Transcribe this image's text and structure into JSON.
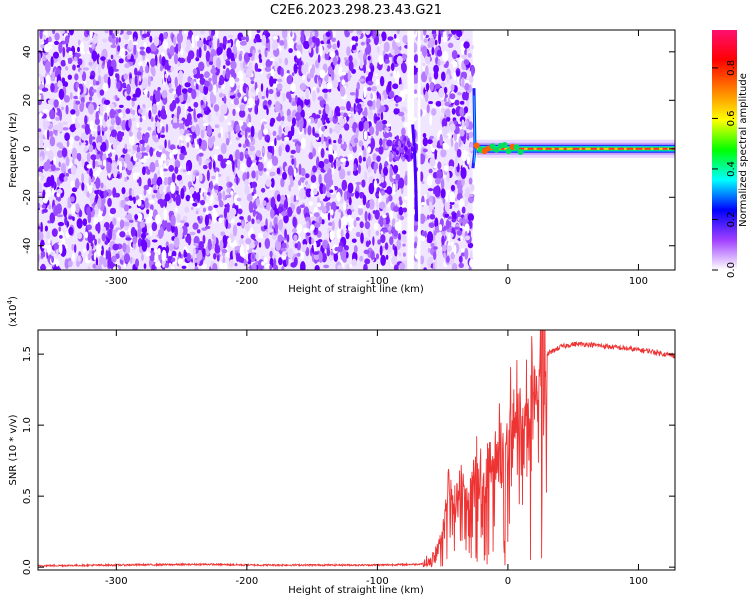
{
  "title": "C2E6.2023.298.23.43.G21",
  "colorbar": {
    "label": "Normalized spectral amplitude",
    "ticks": [
      0.0,
      0.2,
      0.4,
      0.6,
      0.8
    ],
    "tick_labels": [
      "0.0",
      "0.2",
      "0.4",
      "0.6",
      "0.8"
    ],
    "colormap": [
      "#ffffff",
      "#a040ff",
      "#0000ff",
      "#00ffff",
      "#00ff00",
      "#ffff00",
      "#ff8000",
      "#ff0000",
      "#ff1070"
    ]
  },
  "chart_data": [
    {
      "type": "heatmap",
      "xlabel": "Height of straight line (km)",
      "ylabel": "Frequency (Hz)",
      "xlim": [
        -360,
        128
      ],
      "ylim": [
        -50,
        49
      ],
      "xticks": [
        -300,
        -200,
        -100,
        0,
        100
      ],
      "xtick_labels": [
        "-300",
        "-200",
        "-100",
        "0",
        "100"
      ],
      "yticks": [
        -40,
        -20,
        0,
        20,
        40
      ],
      "ytick_labels": [
        "-40",
        "-20",
        "0",
        "20",
        "40"
      ],
      "noise_region_km": [
        -360,
        -27
      ],
      "data_gaps_km": [
        [
          -77,
          -72
        ],
        [
          -69,
          -67
        ]
      ],
      "signal_line": {
        "x_start": -24,
        "x_end": 128,
        "freq_hz": 0,
        "peak_amplitude": 0.9
      },
      "colors": {
        "noise": "#7f1fff",
        "line_core": "#ff3030"
      }
    },
    {
      "type": "line",
      "xlabel": "Height of straight line (km)",
      "ylabel": "SNR (10 * v/v)",
      "scale_label": "(x10",
      "scale_exp": "4",
      "scale_close": ")",
      "xlim": [
        -360,
        128
      ],
      "ylim": [
        -0.02,
        1.67
      ],
      "xticks": [
        -300,
        -200,
        -100,
        0,
        100
      ],
      "xtick_labels": [
        "-300",
        "-200",
        "-100",
        "0",
        "100"
      ],
      "yticks": [
        0.0,
        0.5,
        1.0,
        1.5
      ],
      "ytick_labels": [
        "0.0",
        "0.5",
        "1.0",
        "1.5"
      ],
      "color": "#ee3333",
      "series": [
        {
          "x": [
            -360,
            -300,
            -230,
            -200,
            -150,
            -100,
            -70,
            -60,
            -55,
            -50,
            -45,
            -40,
            -35,
            -30,
            -25,
            -20,
            -15,
            -10,
            -5,
            0,
            5,
            10,
            15,
            20,
            25,
            30,
            40,
            50,
            60,
            70,
            80,
            90,
            100,
            110,
            120,
            128
          ],
          "y": [
            0.01,
            0.015,
            0.02,
            0.015,
            0.015,
            0.015,
            0.02,
            0.03,
            0.1,
            0.25,
            0.6,
            0.4,
            0.6,
            0.5,
            0.7,
            0.6,
            0.8,
            0.7,
            0.9,
            1.0,
            1.1,
            1.05,
            1.2,
            1.25,
            1.45,
            1.5,
            1.55,
            1.57,
            1.57,
            1.56,
            1.55,
            1.54,
            1.53,
            1.52,
            1.5,
            1.49
          ]
        }
      ]
    }
  ]
}
